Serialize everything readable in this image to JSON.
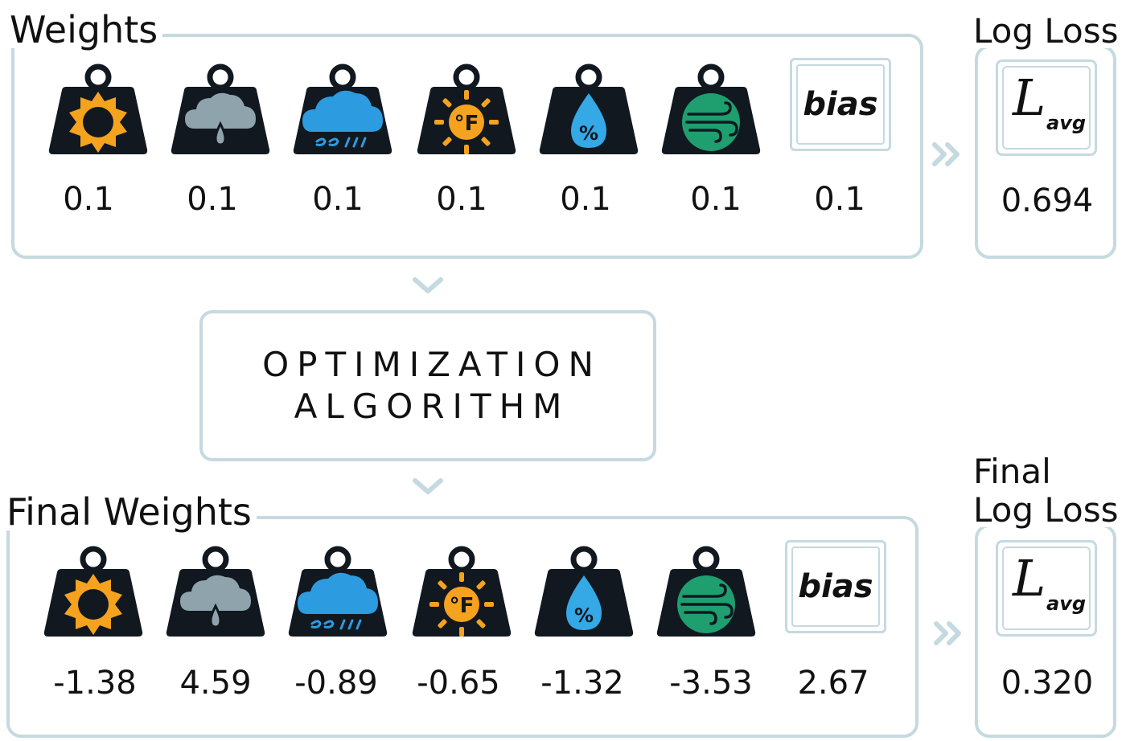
{
  "top": {
    "title": "Weights",
    "values": [
      "0.1",
      "0.1",
      "0.1",
      "0.1",
      "0.1",
      "0.1",
      "0.1"
    ],
    "bias_label": "bias"
  },
  "top_loss": {
    "title": "Log Loss",
    "symbol": "L",
    "subscript": "avg",
    "value": "0.694"
  },
  "optimizer": {
    "line1": "OPTIMIZATION",
    "line2": "ALGORITHM"
  },
  "bottom": {
    "title": "Final Weights",
    "values": [
      "-1.38",
      "4.59",
      "-0.89",
      "-0.65",
      "-1.32",
      "-3.53",
      "2.67"
    ],
    "bias_label": "bias"
  },
  "bottom_loss": {
    "title_line1": "Final",
    "title_line2": "Log Loss",
    "symbol": "L",
    "subscript": "avg",
    "value": "0.320"
  },
  "icons": [
    "sun-icon",
    "cloud-rain-icon",
    "cloud-wind-rain-icon",
    "temperature-fahrenheit-icon",
    "humidity-drop-icon",
    "wind-icon"
  ],
  "colors": {
    "sun": "#f5a21e",
    "cloud_gray": "#8fa3ad",
    "cloud_blue": "#2c9be0",
    "humidity": "#35a8e6",
    "wind": "#1f9e6f",
    "border": "#c5d9e0",
    "weight_body": "#111820"
  }
}
